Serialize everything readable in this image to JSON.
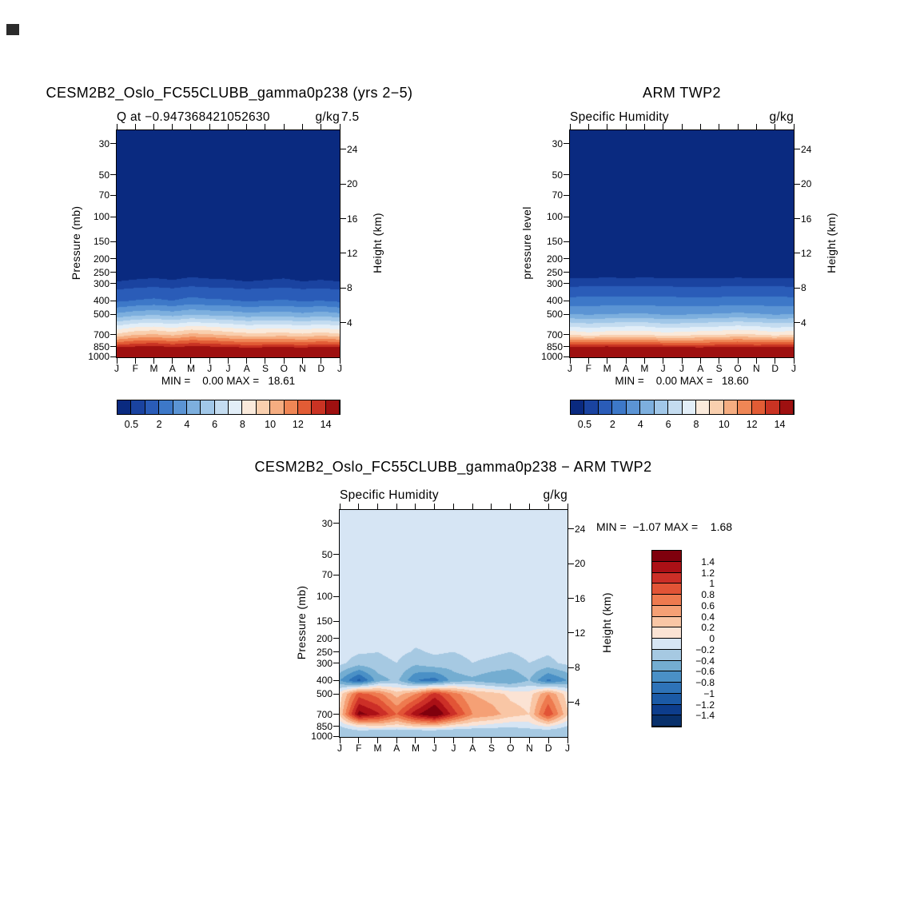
{
  "panels": {
    "model": {
      "title": "CESM2B2_Oslo_FC55CLUBB_gamma0p238 (yrs 2−5)",
      "subtitle_left": "Q at −0.947368421052630",
      "subtitle_overflow": "7.5",
      "units": "g/kg",
      "ylabel_left": "Pressure (mb)",
      "ylabel_right": "Height (km)",
      "stats": "MIN =    0.00 MAX =   18.61"
    },
    "obs": {
      "title": "ARM TWP2",
      "subtitle_left": "Specific Humidity",
      "units": "g/kg",
      "ylabel_left": "pressure level",
      "ylabel_right": "Height (km)",
      "stats": "MIN =    0.00 MAX =   18.60"
    },
    "diff": {
      "title": "CESM2B2_Oslo_FC55CLUBB_gamma0p238 − ARM TWP2",
      "subtitle_left": "Specific Humidity",
      "units": "g/kg",
      "ylabel_left": "Pressure (mb)",
      "ylabel_right": "Height (km)",
      "stats": "MIN =  −1.07 MAX =    1.68"
    }
  },
  "chart_data": [
    {
      "type": "heatmap",
      "title": "CESM2B2_Oslo_FC55CLUBB_gamma0p238 (yrs 2−5)",
      "subtitle": "Q at −0.947368421052630",
      "units": "g/kg",
      "xlabel": "month",
      "ylabel": "Pressure (mb)",
      "ylabel_right": "Height (km)",
      "x_categories": [
        "J",
        "F",
        "M",
        "A",
        "M",
        "J",
        "J",
        "A",
        "S",
        "O",
        "N",
        "D",
        "J"
      ],
      "pressure_ticks": [
        30,
        50,
        70,
        100,
        150,
        200,
        250,
        300,
        400,
        500,
        700,
        850,
        1000
      ],
      "height_ticks": [
        24,
        20,
        16,
        12,
        8,
        4
      ],
      "pressure_range_mb": [
        24,
        1013
      ],
      "grid_pressures_mb": [
        30,
        50,
        70,
        100,
        150,
        200,
        250,
        300,
        400,
        500,
        700,
        850,
        925,
        1000
      ],
      "values": [
        [
          0.003,
          0.003,
          0.003,
          0.003,
          0.003,
          0.003,
          0.003,
          0.003,
          0.003,
          0.003,
          0.003,
          0.003,
          0.003
        ],
        [
          0.003,
          0.003,
          0.003,
          0.003,
          0.003,
          0.003,
          0.003,
          0.003,
          0.003,
          0.003,
          0.003,
          0.003,
          0.003
        ],
        [
          0.004,
          0.004,
          0.004,
          0.004,
          0.004,
          0.004,
          0.004,
          0.004,
          0.004,
          0.004,
          0.004,
          0.004,
          0.004
        ],
        [
          0.006,
          0.006,
          0.006,
          0.006,
          0.006,
          0.006,
          0.006,
          0.006,
          0.006,
          0.006,
          0.006,
          0.006,
          0.006
        ],
        [
          0.02,
          0.02,
          0.025,
          0.02,
          0.03,
          0.025,
          0.02,
          0.02,
          0.02,
          0.025,
          0.02,
          0.02,
          0.02
        ],
        [
          0.08,
          0.09,
          0.1,
          0.09,
          0.11,
          0.1,
          0.09,
          0.08,
          0.09,
          0.1,
          0.08,
          0.09,
          0.08
        ],
        [
          0.25,
          0.28,
          0.3,
          0.27,
          0.32,
          0.3,
          0.28,
          0.25,
          0.27,
          0.3,
          0.25,
          0.28,
          0.25
        ],
        [
          0.55,
          0.62,
          0.68,
          0.6,
          0.72,
          0.65,
          0.62,
          0.55,
          0.6,
          0.66,
          0.55,
          0.6,
          0.55
        ],
        [
          1.8,
          2.05,
          2.2,
          2.0,
          2.35,
          2.15,
          2.1,
          1.9,
          2.0,
          2.1,
          1.9,
          2.0,
          1.8
        ],
        [
          4.2,
          4.6,
          4.8,
          4.5,
          4.9,
          4.7,
          4.6,
          4.3,
          4.4,
          4.5,
          4.2,
          4.5,
          4.2
        ],
        [
          9.2,
          9.9,
          10.1,
          9.7,
          10.3,
          10.1,
          9.7,
          9.4,
          9.4,
          9.5,
          9.2,
          9.6,
          9.2
        ],
        [
          13.5,
          13.9,
          14.1,
          13.7,
          14.0,
          13.9,
          13.6,
          13.4,
          13.5,
          13.6,
          13.4,
          13.7,
          13.5
        ],
        [
          16.2,
          16.4,
          16.5,
          16.3,
          16.5,
          16.4,
          16.2,
          16.0,
          16.1,
          16.2,
          16.0,
          16.3,
          16.2
        ],
        [
          18.3,
          18.5,
          18.61,
          18.4,
          18.5,
          18.4,
          18.2,
          18.1,
          18.2,
          18.3,
          18.2,
          18.4,
          18.3
        ]
      ],
      "contour_levels": [
        0.5,
        1,
        2,
        3,
        4,
        5,
        6,
        7,
        8,
        9,
        10,
        11,
        12,
        13,
        14
      ],
      "colors": [
        "#0a2a80",
        "#1a43a0",
        "#2a5cb8",
        "#3d78c8",
        "#5b94d4",
        "#7dafde",
        "#a1c7e8",
        "#c4dcf0",
        "#e2eef8",
        "#faeadb",
        "#f9cfae",
        "#f5ad81",
        "#ef8655",
        "#e25c35",
        "#c93323",
        "#9e1010"
      ],
      "colorbar_labels": [
        "0.5",
        "2",
        "4",
        "6",
        "8",
        "10",
        "12",
        "14"
      ],
      "min": 0.0,
      "max": 18.61
    },
    {
      "type": "heatmap",
      "title": "ARM TWP2",
      "subtitle": "Specific Humidity",
      "units": "g/kg",
      "xlabel": "month",
      "ylabel": "pressure level",
      "ylabel_right": "Height (km)",
      "x_categories": [
        "J",
        "F",
        "M",
        "A",
        "M",
        "J",
        "J",
        "A",
        "S",
        "O",
        "N",
        "D",
        "J"
      ],
      "pressure_ticks": [
        30,
        50,
        70,
        100,
        150,
        200,
        250,
        300,
        400,
        500,
        700,
        850,
        1000
      ],
      "height_ticks": [
        24,
        20,
        16,
        12,
        8,
        4
      ],
      "pressure_range_mb": [
        24,
        1013
      ],
      "grid_pressures_mb": [
        30,
        50,
        70,
        100,
        150,
        200,
        250,
        300,
        400,
        500,
        700,
        850,
        925,
        1000
      ],
      "values": [
        [
          0.003,
          0.003,
          0.003,
          0.003,
          0.003,
          0.003,
          0.003,
          0.003,
          0.003,
          0.003,
          0.003,
          0.003,
          0.003
        ],
        [
          0.003,
          0.003,
          0.003,
          0.003,
          0.003,
          0.003,
          0.003,
          0.003,
          0.003,
          0.003,
          0.003,
          0.003,
          0.003
        ],
        [
          0.004,
          0.004,
          0.004,
          0.004,
          0.004,
          0.004,
          0.004,
          0.004,
          0.004,
          0.004,
          0.004,
          0.004,
          0.004
        ],
        [
          0.006,
          0.006,
          0.006,
          0.006,
          0.006,
          0.006,
          0.006,
          0.006,
          0.006,
          0.006,
          0.006,
          0.006,
          0.006
        ],
        [
          0.02,
          0.02,
          0.02,
          0.02,
          0.02,
          0.02,
          0.02,
          0.02,
          0.02,
          0.02,
          0.02,
          0.02,
          0.02
        ],
        [
          0.09,
          0.09,
          0.09,
          0.09,
          0.09,
          0.09,
          0.09,
          0.09,
          0.09,
          0.09,
          0.09,
          0.09,
          0.09
        ],
        [
          0.28,
          0.29,
          0.3,
          0.29,
          0.3,
          0.29,
          0.28,
          0.28,
          0.29,
          0.3,
          0.29,
          0.29,
          0.28
        ],
        [
          0.68,
          0.7,
          0.72,
          0.7,
          0.72,
          0.7,
          0.68,
          0.67,
          0.69,
          0.71,
          0.7,
          0.7,
          0.68
        ],
        [
          2.35,
          2.4,
          2.45,
          2.4,
          2.45,
          2.4,
          2.35,
          2.3,
          2.35,
          2.45,
          2.4,
          2.4,
          2.35
        ],
        [
          4.0,
          3.9,
          4.0,
          4.1,
          4.1,
          3.9,
          3.9,
          4.0,
          4.1,
          4.2,
          4.1,
          3.9,
          4.0
        ],
        [
          8.9,
          8.5,
          8.8,
          8.9,
          8.9,
          8.5,
          8.6,
          8.8,
          8.9,
          9.2,
          9.0,
          8.6,
          8.9
        ],
        [
          13.7,
          13.8,
          13.9,
          13.6,
          13.8,
          13.6,
          13.5,
          13.4,
          13.6,
          13.8,
          13.5,
          13.7,
          13.7
        ],
        [
          16.5,
          16.6,
          16.6,
          16.5,
          16.7,
          16.5,
          16.4,
          16.3,
          16.4,
          16.5,
          16.3,
          16.5,
          16.5
        ],
        [
          18.5,
          18.6,
          18.5,
          18.55,
          18.6,
          18.5,
          18.4,
          18.45,
          18.5,
          18.6,
          18.4,
          18.55,
          18.5
        ]
      ],
      "contour_levels": [
        0.5,
        1,
        2,
        3,
        4,
        5,
        6,
        7,
        8,
        9,
        10,
        11,
        12,
        13,
        14
      ],
      "colors": [
        "#0a2a80",
        "#1a43a0",
        "#2a5cb8",
        "#3d78c8",
        "#5b94d4",
        "#7dafde",
        "#a1c7e8",
        "#c4dcf0",
        "#e2eef8",
        "#faeadb",
        "#f9cfae",
        "#f5ad81",
        "#ef8655",
        "#e25c35",
        "#c93323",
        "#9e1010"
      ],
      "colorbar_labels": [
        "0.5",
        "2",
        "4",
        "6",
        "8",
        "10",
        "12",
        "14"
      ],
      "min": 0.0,
      "max": 18.6
    },
    {
      "type": "heatmap",
      "title": "CESM2B2_Oslo_FC55CLUBB_gamma0p238 − ARM TWP2",
      "subtitle": "Specific Humidity",
      "units": "g/kg",
      "xlabel": "month",
      "ylabel": "Pressure (mb)",
      "ylabel_right": "Height (km)",
      "x_categories": [
        "J",
        "F",
        "M",
        "A",
        "M",
        "J",
        "J",
        "A",
        "S",
        "O",
        "N",
        "D",
        "J"
      ],
      "pressure_ticks": [
        30,
        50,
        70,
        100,
        150,
        200,
        250,
        300,
        400,
        500,
        700,
        850,
        1000
      ],
      "height_ticks": [
        24,
        20,
        16,
        12,
        8,
        4
      ],
      "pressure_range_mb": [
        24,
        1013
      ],
      "grid_pressures_mb": [
        30,
        50,
        70,
        100,
        150,
        200,
        250,
        300,
        400,
        500,
        700,
        850,
        925,
        1000
      ],
      "values": [
        [
          -0.05,
          -0.05,
          -0.05,
          -0.05,
          -0.05,
          -0.05,
          -0.05,
          -0.05,
          -0.05,
          -0.05,
          -0.05,
          -0.05,
          -0.05
        ],
        [
          -0.05,
          -0.05,
          -0.05,
          -0.05,
          -0.05,
          -0.05,
          -0.05,
          -0.05,
          -0.05,
          -0.05,
          -0.05,
          -0.05,
          -0.05
        ],
        [
          -0.06,
          -0.06,
          -0.06,
          -0.06,
          -0.06,
          -0.06,
          -0.06,
          -0.06,
          -0.06,
          -0.06,
          -0.06,
          -0.06,
          -0.06
        ],
        [
          -0.07,
          -0.06,
          -0.08,
          -0.07,
          -0.09,
          -0.07,
          -0.08,
          -0.06,
          -0.07,
          -0.08,
          -0.06,
          -0.07,
          -0.07
        ],
        [
          -0.08,
          -0.1,
          -0.09,
          -0.1,
          -0.12,
          -0.1,
          -0.11,
          -0.09,
          -0.1,
          -0.11,
          -0.09,
          -0.1,
          -0.08
        ],
        [
          -0.1,
          -0.12,
          -0.15,
          -0.12,
          -0.16,
          -0.13,
          -0.14,
          -0.11,
          -0.12,
          -0.15,
          -0.11,
          -0.13,
          -0.1
        ],
        [
          -0.12,
          -0.18,
          -0.2,
          -0.15,
          -0.22,
          -0.18,
          -0.2,
          -0.14,
          -0.16,
          -0.2,
          -0.14,
          -0.18,
          -0.12
        ],
        [
          -0.15,
          -0.3,
          -0.25,
          -0.2,
          -0.35,
          -0.25,
          -0.3,
          -0.2,
          -0.25,
          -0.3,
          -0.2,
          -0.25,
          -0.15
        ],
        [
          -0.6,
          -1.07,
          -0.5,
          -0.35,
          -0.8,
          -0.9,
          -0.5,
          -0.45,
          -0.55,
          -0.6,
          -0.4,
          -0.85,
          -0.6
        ],
        [
          0.1,
          0.9,
          0.7,
          0.3,
          0.6,
          1.1,
          0.7,
          0.4,
          0.3,
          0.15,
          0.1,
          0.6,
          0.1
        ],
        [
          0.25,
          1.5,
          1.25,
          0.8,
          1.35,
          1.68,
          1.1,
          0.6,
          0.5,
          0.3,
          0.2,
          1.0,
          0.25
        ],
        [
          -0.2,
          0.1,
          0.2,
          0.1,
          0.25,
          0.3,
          0.1,
          0.0,
          -0.1,
          -0.15,
          -0.1,
          0.05,
          -0.2
        ],
        [
          -0.35,
          -0.25,
          -0.3,
          -0.35,
          -0.3,
          -0.3,
          -0.35,
          -0.4,
          -0.35,
          -0.35,
          -0.3,
          -0.3,
          -0.35
        ],
        [
          -0.3,
          -0.2,
          -0.25,
          -0.3,
          -0.25,
          -0.25,
          -0.3,
          -0.35,
          -0.3,
          -0.3,
          -0.25,
          -0.25,
          -0.3
        ]
      ],
      "contour_levels": [
        -1.4,
        -1.2,
        -1,
        -0.8,
        -0.6,
        -0.4,
        -0.2,
        0,
        0.2,
        0.4,
        0.6,
        0.8,
        1,
        1.2,
        1.4
      ],
      "colors": [
        "#08306b",
        "#0d3d8c",
        "#1b5aa6",
        "#2e73b8",
        "#4a90c6",
        "#74add1",
        "#a6c9e2",
        "#d6e5f4",
        "#fbe3d4",
        "#f9c6a5",
        "#f5a075",
        "#ee7a4f",
        "#e25436",
        "#cc2f27",
        "#ab1016",
        "#7f000d"
      ],
      "colorbar_labels_top_to_bottom": [
        "1.4",
        "1.2",
        "1",
        "0.8",
        "0.6",
        "0.4",
        "0.2",
        "0",
        "−0.2",
        "−0.4",
        "−0.6",
        "−0.8",
        "−1",
        "−1.2",
        "−1.4"
      ],
      "min": -1.07,
      "max": 1.68
    }
  ]
}
